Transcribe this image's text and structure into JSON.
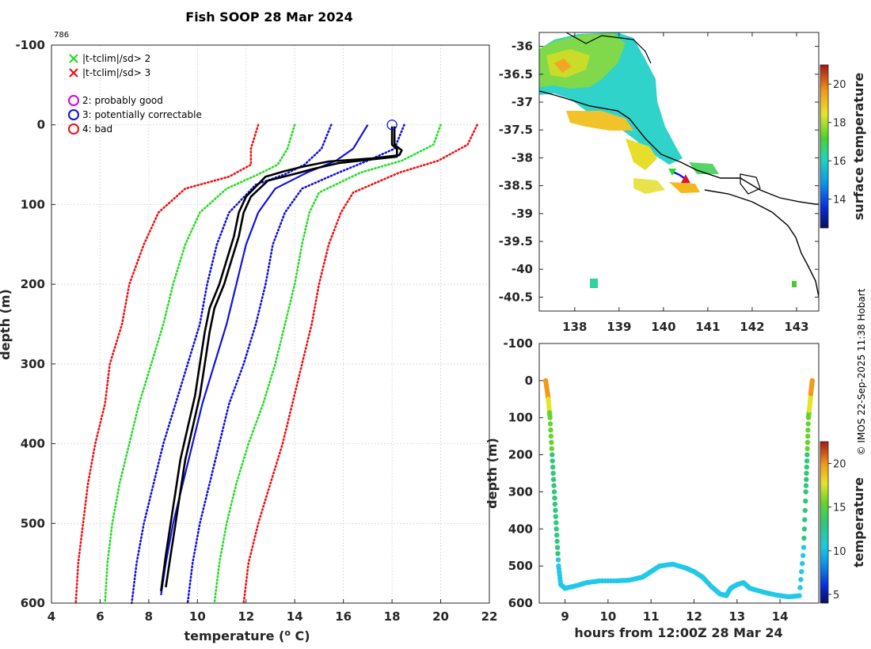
{
  "title": "Fish SOOP 28 Mar 2024",
  "cruise_id": "786",
  "stamp": "© IMOS 22-Sep-2025 11:38 Hobart",
  "colors": {
    "green": "#22dd22",
    "red": "#ee1111",
    "blue": "#1010dd",
    "magenta": "#dd00dd",
    "black": "#000000",
    "grid": "#cccccc",
    "land": "#000000"
  },
  "legend": {
    "items": [
      {
        "symbol": "x",
        "color": "#22dd22",
        "text": "|t-tclim|/sd> 2"
      },
      {
        "symbol": "x",
        "color": "#ee1111",
        "text": "|t-tclim|/sd> 3"
      },
      {
        "symbol": "o",
        "color": "#dd00dd",
        "text": "2: probably good"
      },
      {
        "symbol": "o",
        "color": "#1010dd",
        "text": "3: potentially correctable"
      },
      {
        "symbol": "o",
        "color": "#ee1111",
        "text": "4: bad"
      }
    ]
  },
  "chart_data": [
    {
      "id": "profile",
      "type": "line",
      "title": "Fish SOOP 28 Mar 2024",
      "xlabel": "temperature (",
      "xlabel_sup": "o",
      "xlabel_tail": " C)",
      "ylabel": "depth (m)",
      "xlim": [
        4,
        22
      ],
      "ylim": [
        -100,
        600
      ],
      "y_reversed": true,
      "grid": true,
      "xticks": [
        4,
        6,
        8,
        10,
        12,
        14,
        16,
        18,
        20,
        22
      ],
      "yticks": [
        -100,
        0,
        100,
        200,
        300,
        400,
        500,
        600
      ],
      "climatology": [
        {
          "name": "clim -3sd",
          "color": "#ee1111",
          "dotted": true,
          "points": [
            [
              12.5,
              0
            ],
            [
              12.2,
              30
            ],
            [
              12.2,
              50
            ],
            [
              11.3,
              65
            ],
            [
              9.5,
              80
            ],
            [
              8.4,
              110
            ],
            [
              7.8,
              150
            ],
            [
              7.2,
              200
            ],
            [
              6.9,
              250
            ],
            [
              6.4,
              300
            ],
            [
              6.2,
              350
            ],
            [
              5.8,
              400
            ],
            [
              5.5,
              450
            ],
            [
              5.3,
              500
            ],
            [
              5.1,
              550
            ],
            [
              5.0,
              600
            ]
          ]
        },
        {
          "name": "clim -2sd",
          "color": "#22dd22",
          "dotted": true,
          "points": [
            [
              14.0,
              0
            ],
            [
              13.7,
              30
            ],
            [
              13.3,
              50
            ],
            [
              12.5,
              62
            ],
            [
              11.2,
              80
            ],
            [
              10.1,
              110
            ],
            [
              9.5,
              150
            ],
            [
              9.0,
              200
            ],
            [
              8.6,
              250
            ],
            [
              8.1,
              300
            ],
            [
              7.6,
              350
            ],
            [
              7.2,
              400
            ],
            [
              6.8,
              450
            ],
            [
              6.5,
              500
            ],
            [
              6.3,
              550
            ],
            [
              6.2,
              600
            ]
          ]
        },
        {
          "name": "clim -1sd",
          "color": "#1010dd",
          "dotted": true,
          "points": [
            [
              15.5,
              0
            ],
            [
              15.1,
              30
            ],
            [
              14.4,
              50
            ],
            [
              13.6,
              62
            ],
            [
              12.4,
              75
            ],
            [
              11.3,
              110
            ],
            [
              10.8,
              150
            ],
            [
              10.4,
              200
            ],
            [
              10.1,
              250
            ],
            [
              9.6,
              300
            ],
            [
              9.1,
              350
            ],
            [
              8.6,
              400
            ],
            [
              8.2,
              450
            ],
            [
              7.8,
              500
            ],
            [
              7.5,
              550
            ],
            [
              7.3,
              600
            ]
          ]
        },
        {
          "name": "clim mean",
          "color": "#1010dd",
          "dotted": false,
          "points": [
            [
              17.0,
              0
            ],
            [
              16.4,
              30
            ],
            [
              15.7,
              45
            ],
            [
              14.5,
              60
            ],
            [
              13.2,
              80
            ],
            [
              12.5,
              110
            ],
            [
              12.0,
              150
            ],
            [
              11.6,
              200
            ],
            [
              11.2,
              250
            ],
            [
              10.7,
              300
            ],
            [
              10.2,
              350
            ],
            [
              9.8,
              400
            ],
            [
              9.4,
              450
            ],
            [
              9.0,
              500
            ],
            [
              8.7,
              550
            ],
            [
              8.5,
              590
            ]
          ]
        },
        {
          "name": "clim +1sd",
          "color": "#1010dd",
          "dotted": true,
          "points": [
            [
              18.5,
              0
            ],
            [
              18.1,
              30
            ],
            [
              17.0,
              45
            ],
            [
              15.8,
              60
            ],
            [
              14.3,
              80
            ],
            [
              13.6,
              110
            ],
            [
              13.1,
              150
            ],
            [
              12.8,
              200
            ],
            [
              12.4,
              250
            ],
            [
              11.9,
              300
            ],
            [
              11.3,
              350
            ],
            [
              10.9,
              400
            ],
            [
              10.5,
              450
            ],
            [
              10.1,
              500
            ],
            [
              9.8,
              550
            ],
            [
              9.6,
              600
            ]
          ]
        },
        {
          "name": "clim +2sd",
          "color": "#22dd22",
          "dotted": true,
          "points": [
            [
              20.0,
              0
            ],
            [
              19.7,
              25
            ],
            [
              18.4,
              45
            ],
            [
              16.7,
              60
            ],
            [
              15.0,
              85
            ],
            [
              14.6,
              110
            ],
            [
              14.3,
              150
            ],
            [
              14.0,
              200
            ],
            [
              13.6,
              250
            ],
            [
              13.2,
              300
            ],
            [
              12.7,
              350
            ],
            [
              12.1,
              400
            ],
            [
              11.6,
              450
            ],
            [
              11.2,
              500
            ],
            [
              10.9,
              550
            ],
            [
              10.7,
              600
            ]
          ]
        },
        {
          "name": "clim +3sd",
          "color": "#ee1111",
          "dotted": true,
          "points": [
            [
              21.5,
              0
            ],
            [
              21.1,
              25
            ],
            [
              19.9,
              45
            ],
            [
              18.3,
              60
            ],
            [
              16.4,
              85
            ],
            [
              15.9,
              110
            ],
            [
              15.4,
              150
            ],
            [
              15.0,
              200
            ],
            [
              14.7,
              250
            ],
            [
              14.3,
              300
            ],
            [
              13.9,
              350
            ],
            [
              13.5,
              400
            ],
            [
              13.0,
              450
            ],
            [
              12.5,
              500
            ],
            [
              12.1,
              550
            ],
            [
              11.9,
              600
            ]
          ]
        }
      ],
      "profiles": [
        {
          "name": "cast down",
          "color": "#000000",
          "points": [
            [
              18.0,
              2
            ],
            [
              18.0,
              25
            ],
            [
              18.2,
              30
            ],
            [
              18.2,
              40
            ],
            [
              17.0,
              44
            ],
            [
              15.8,
              48
            ],
            [
              14.8,
              55
            ],
            [
              14.2,
              60
            ],
            [
              12.9,
              70
            ],
            [
              12.2,
              90
            ],
            [
              11.9,
              110
            ],
            [
              11.7,
              140
            ],
            [
              11.4,
              170
            ],
            [
              11.1,
              200
            ],
            [
              10.7,
              230
            ],
            [
              10.5,
              260
            ],
            [
              10.3,
              300
            ],
            [
              10.1,
              340
            ],
            [
              9.8,
              380
            ],
            [
              9.5,
              420
            ],
            [
              9.3,
              460
            ],
            [
              9.1,
              500
            ],
            [
              8.9,
              540
            ],
            [
              8.7,
              580
            ]
          ]
        },
        {
          "name": "cast up",
          "color": "#000000",
          "points": [
            [
              18.1,
              2
            ],
            [
              18.1,
              25
            ],
            [
              18.4,
              32
            ],
            [
              18.3,
              38
            ],
            [
              17.2,
              42
            ],
            [
              15.4,
              46
            ],
            [
              14.4,
              52
            ],
            [
              13.6,
              58
            ],
            [
              12.8,
              65
            ],
            [
              12.0,
              90
            ],
            [
              11.7,
              110
            ],
            [
              11.5,
              140
            ],
            [
              11.2,
              170
            ],
            [
              10.9,
              200
            ],
            [
              10.5,
              230
            ],
            [
              10.3,
              260
            ],
            [
              10.1,
              300
            ],
            [
              9.9,
              340
            ],
            [
              9.6,
              380
            ],
            [
              9.3,
              420
            ],
            [
              9.1,
              460
            ],
            [
              8.9,
              500
            ],
            [
              8.7,
              540
            ],
            [
              8.5,
              585
            ]
          ]
        }
      ],
      "marker": {
        "x": 18.0,
        "y": 0,
        "color": "#1010dd"
      }
    },
    {
      "id": "map",
      "type": "heatmap",
      "xlim": [
        137.2,
        143.5
      ],
      "ylim": [
        -40.75,
        -35.75
      ],
      "xticks": [
        138,
        139,
        140,
        141,
        142,
        143
      ],
      "yticks": [
        -36,
        -36.5,
        -37,
        -37.5,
        -38,
        -38.5,
        -39,
        -39.5,
        -40,
        -40.5
      ],
      "colorbar_label": "surface temperature",
      "colorbar_range": [
        12.5,
        21
      ],
      "colorbar_ticks": [
        14,
        16,
        18,
        20
      ],
      "track": {
        "lon": [
          140.2,
          140.35,
          140.5
        ],
        "lat": [
          -38.25,
          -38.3,
          -38.38
        ],
        "start_color": "#22dd22",
        "end_color": "#dd1133"
      }
    },
    {
      "id": "timeseries",
      "type": "scatter",
      "xlabel": "hours from 12:00Z 28 Mar 24",
      "ylabel": "depth (m)",
      "xlim": [
        8.4,
        14.9
      ],
      "ylim": [
        -100,
        600
      ],
      "y_reversed": true,
      "xticks": [
        9,
        10,
        11,
        12,
        13,
        14
      ],
      "yticks": [
        -100,
        0,
        100,
        200,
        300,
        400,
        500,
        600
      ],
      "colorbar_label": "temperature",
      "colorbar_range": [
        4,
        22.5
      ],
      "colorbar_ticks": [
        5,
        10,
        15,
        20
      ],
      "points": [
        [
          8.55,
          0,
          18.2
        ],
        [
          8.6,
          40,
          17.5
        ],
        [
          8.62,
          60,
          15.5
        ],
        [
          8.65,
          100,
          12.8
        ],
        [
          8.7,
          200,
          12.0
        ],
        [
          8.75,
          300,
          11.0
        ],
        [
          8.8,
          400,
          10.1
        ],
        [
          8.85,
          500,
          9.3
        ],
        [
          8.9,
          550,
          9.0
        ],
        [
          9.0,
          560,
          9.0
        ],
        [
          9.2,
          555,
          9.0
        ],
        [
          9.5,
          545,
          9.0
        ],
        [
          9.8,
          540,
          9.0
        ],
        [
          10.2,
          540,
          9.0
        ],
        [
          10.5,
          538,
          9.0
        ],
        [
          10.8,
          530,
          9.0
        ],
        [
          11.0,
          515,
          9.1
        ],
        [
          11.2,
          500,
          9.2
        ],
        [
          11.5,
          495,
          9.2
        ],
        [
          11.8,
          505,
          9.2
        ],
        [
          12.0,
          515,
          9.1
        ],
        [
          12.2,
          530,
          9.0
        ],
        [
          12.4,
          555,
          9.0
        ],
        [
          12.6,
          575,
          8.8
        ],
        [
          12.75,
          580,
          8.8
        ],
        [
          12.85,
          560,
          8.9
        ],
        [
          13.0,
          550,
          9.0
        ],
        [
          13.15,
          545,
          9.0
        ],
        [
          13.3,
          560,
          9.0
        ],
        [
          13.6,
          570,
          8.9
        ],
        [
          13.9,
          578,
          8.9
        ],
        [
          14.2,
          583,
          8.8
        ],
        [
          14.45,
          580,
          8.9
        ],
        [
          14.55,
          450,
          9.5
        ],
        [
          14.6,
          300,
          11.0
        ],
        [
          14.63,
          200,
          12.0
        ],
        [
          14.66,
          100,
          13.0
        ],
        [
          14.7,
          60,
          15.5
        ],
        [
          14.72,
          30,
          17.0
        ],
        [
          14.75,
          0,
          18.2
        ]
      ]
    }
  ]
}
